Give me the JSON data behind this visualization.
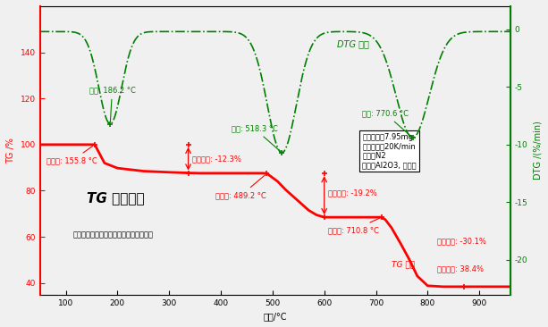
{
  "xlabel": "温度/°C",
  "ylabel_left": "TG /%",
  "ylabel_right": "DTG /(%/min)",
  "xlim": [
    50,
    960
  ],
  "ylim_left": [
    35,
    160
  ],
  "ylim_right": [
    -23,
    2
  ],
  "tg_color": "#FF0000",
  "dtg_color": "#008000",
  "background_color": "#F0F0F0",
  "title": "TG 典型图谱",
  "subtitle": "（图中所示为一水合草酸钙的分解过程）",
  "info_lines": [
    "样品称重：7.95mg",
    "升温速率：20K/min",
    "气氛：N2",
    "坛埚：Al2O3, 敎开式"
  ],
  "xticks": [
    100,
    200,
    300,
    400,
    500,
    600,
    700,
    800,
    900
  ],
  "yticks_left": [
    40,
    60,
    80,
    100,
    120,
    140
  ],
  "yticks_right": [
    0,
    -5,
    -10,
    -15,
    -20
  ],
  "tg_x": [
    50,
    100,
    140,
    155,
    158,
    175,
    200,
    250,
    300,
    340,
    360,
    400,
    450,
    480,
    489,
    495,
    510,
    525,
    540,
    555,
    570,
    585,
    600,
    615,
    635,
    660,
    685,
    710,
    718,
    730,
    748,
    765,
    780,
    800,
    830,
    860,
    900,
    940,
    960
  ],
  "tg_y": [
    100,
    100,
    100,
    100,
    99.2,
    92,
    89.8,
    88.5,
    88.0,
    87.7,
    87.6,
    87.6,
    87.6,
    87.6,
    87.5,
    86.5,
    84,
    80.5,
    77.5,
    74.5,
    71.5,
    69.5,
    68.5,
    68.5,
    68.5,
    68.5,
    68.5,
    68.5,
    67.5,
    64,
    57,
    50,
    43,
    38.8,
    38.4,
    38.4,
    38.4,
    38.4,
    38.4
  ],
  "dtg_peak1": {
    "mu": 186,
    "sigma": 22,
    "amp": -8.0
  },
  "dtg_peak2": {
    "mu": 518,
    "sigma": 28,
    "amp": -10.5
  },
  "dtg_peak3": {
    "mu": 771,
    "sigma": 32,
    "amp": -9.2
  },
  "dtg_baseline": -0.2
}
